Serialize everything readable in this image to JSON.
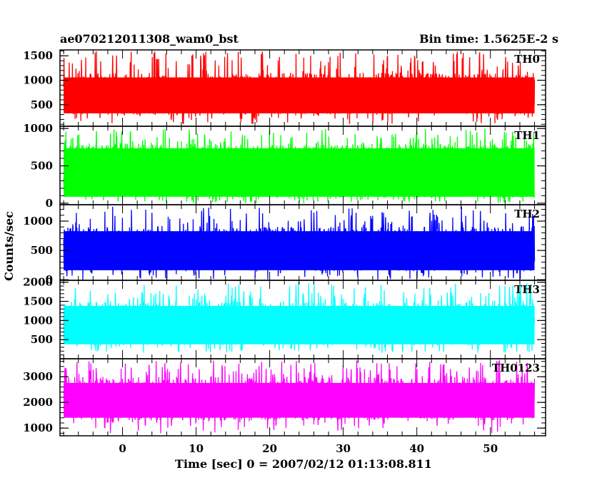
{
  "header": {
    "title": "ae070212011308_wam0_bst",
    "bin_time": "Bin time: 1.5625E-2 s"
  },
  "chart_data": {
    "type": "line",
    "xlabel": "Time [sec] 0 = 2007/02/12 01:13:08.811",
    "ylabel": "Counts/sec",
    "xlim": [
      -8.5,
      57.5
    ],
    "x_range_data": [
      -8,
      56
    ],
    "x_ticks": [
      0,
      10,
      20,
      30,
      40,
      50
    ],
    "x_tick_labels": [
      "0",
      "10",
      "20",
      "30",
      "40",
      "50"
    ],
    "grid": false,
    "panels": [
      {
        "name": "TH0",
        "color": "#ff0000",
        "ylim": [
          60,
          1620
        ],
        "yticks": [
          500,
          1000,
          1500
        ],
        "ytick_labels": [
          "500",
          "1000",
          "1500"
        ],
        "typical_low": 300,
        "typical_high": 1150,
        "min": 100,
        "max": 1600
      },
      {
        "name": "TH1",
        "color": "#00ff00",
        "ylim": [
          -20,
          1030
        ],
        "yticks": [
          0,
          500,
          1000
        ],
        "ytick_labels": [
          "0",
          "500",
          "1000"
        ],
        "typical_low": 80,
        "typical_high": 800,
        "min": 0,
        "max": 1000
      },
      {
        "name": "TH2",
        "color": "#0000ff",
        "ylim": [
          -10,
          1280
        ],
        "yticks": [
          0,
          500,
          1000
        ],
        "ytick_labels": [
          "0",
          "500",
          "1000"
        ],
        "typical_low": 150,
        "typical_high": 900,
        "min": 0,
        "max": 1250
      },
      {
        "name": "TH3",
        "color": "#00ffff",
        "ylim": [
          0,
          2050
        ],
        "yticks": [
          500,
          1000,
          1500,
          2000
        ],
        "ytick_labels": [
          "500",
          "1000",
          "1500",
          "2000"
        ],
        "typical_low": 350,
        "typical_high": 1500,
        "min": 150,
        "max": 2000
      },
      {
        "name": "TH0123",
        "color": "#ff00ff",
        "ylim": [
          700,
          3700
        ],
        "yticks": [
          1000,
          2000,
          3000
        ],
        "ytick_labels": [
          "1000",
          "2000",
          "3000"
        ],
        "typical_low": 1300,
        "typical_high": 3000,
        "min": 800,
        "max": 3650
      }
    ]
  }
}
